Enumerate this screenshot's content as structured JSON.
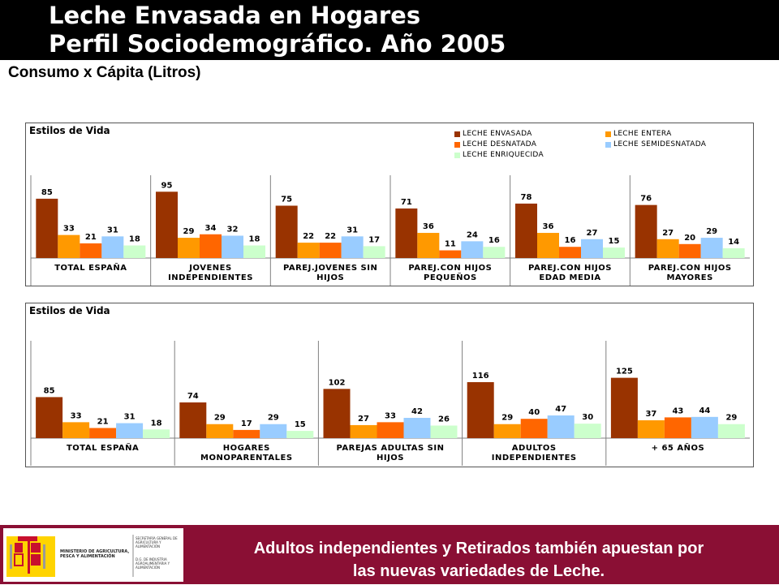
{
  "title": {
    "line1": "Leche Envasada en Hogares",
    "line2": "Perfil Sociodemográfico. Año 2005"
  },
  "subtitle": "Consumo x Cápita (Litros)",
  "colors": {
    "envasada": "#993300",
    "entera": "#ff9900",
    "desnatada": "#ff6600",
    "semidesnatada": "#99ccff",
    "enriquecida": "#ccffcc",
    "footer": "#8a0f34"
  },
  "legend": [
    {
      "name": "LECHE ENVASADA",
      "color": "#993300"
    },
    {
      "name": "LECHE ENTERA",
      "color": "#ff9900"
    },
    {
      "name": "LECHE DESNATADA",
      "color": "#ff6600"
    },
    {
      "name": "LECHE SEMIDESNATADA",
      "color": "#99ccff"
    },
    {
      "name": "LECHE ENRIQUECIDA",
      "color": "#ccffcc"
    }
  ],
  "chart_data": [
    {
      "type": "bar",
      "title": "Estilos de Vida",
      "legend_position": "top-right",
      "ylim": [
        0,
        100
      ],
      "categories": [
        [
          "TOTAL ESPAÑA"
        ],
        [
          "JOVENES",
          "INDEPENDIENTES"
        ],
        [
          "PAREJ.JOVENES SIN",
          "HIJOS"
        ],
        [
          "PAREJ.CON HIJOS",
          "PEQUEÑOS"
        ],
        [
          "PAREJ.CON HIJOS",
          "EDAD MEDIA"
        ],
        [
          "PAREJ.CON HIJOS",
          "MAYORES"
        ]
      ],
      "series": [
        {
          "name": "LECHE ENVASADA",
          "values": [
            85,
            95,
            75,
            71,
            78,
            76
          ]
        },
        {
          "name": "LECHE ENTERA",
          "values": [
            33,
            29,
            22,
            36,
            36,
            27
          ]
        },
        {
          "name": "LECHE DESNATADA",
          "values": [
            21,
            34,
            22,
            11,
            16,
            20
          ]
        },
        {
          "name": "LECHE SEMIDESNATADA",
          "values": [
            31,
            32,
            31,
            24,
            27,
            29
          ]
        },
        {
          "name": "LECHE ENRIQUECIDA",
          "values": [
            18,
            18,
            17,
            16,
            15,
            14
          ]
        }
      ]
    },
    {
      "type": "bar",
      "title": "Estilos de Vida",
      "ylim": [
        0,
        130
      ],
      "categories": [
        [
          "TOTAL ESPAÑA"
        ],
        [
          "HOGARES",
          "MONOPARENTALES"
        ],
        [
          "PAREJAS ADULTAS SIN",
          "HIJOS"
        ],
        [
          "ADULTOS",
          "INDEPENDIENTES"
        ],
        [
          "+ 65 AÑOS"
        ]
      ],
      "series": [
        {
          "name": "LECHE ENVASADA",
          "values": [
            85,
            74,
            102,
            116,
            125
          ]
        },
        {
          "name": "LECHE ENTERA",
          "values": [
            33,
            29,
            27,
            29,
            37
          ]
        },
        {
          "name": "LECHE DESNATADA",
          "values": [
            21,
            17,
            33,
            40,
            43
          ]
        },
        {
          "name": "LECHE SEMIDESNATADA",
          "values": [
            31,
            29,
            42,
            47,
            44
          ]
        },
        {
          "name": "LECHE ENRIQUECIDA",
          "values": [
            18,
            15,
            26,
            30,
            29
          ]
        }
      ]
    }
  ],
  "footer": {
    "message_line1": "Adultos independientes y Retirados también apuestan por",
    "message_line2": "las nuevas variedades de Leche.",
    "ministry": "MINISTERIO DE AGRICULTURA, PESCA Y ALIMENTACIÓN",
    "secretaria": "SECRETARÍA GENERAL DE AGRICULTURA Y ALIMENTACIÓN",
    "direccion": "D.G. DE INDUSTRIA AGROALIMENTARIA Y ALIMENTACIÓN"
  }
}
